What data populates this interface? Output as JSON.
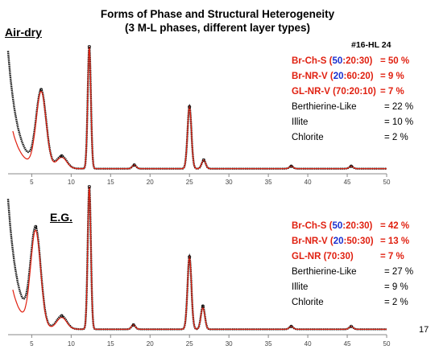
{
  "title_line1": "Forms of Phase and Structural Heterogeneity",
  "title_line2": "(3 M-L phases, different layer types)",
  "sample_id": "#16-HL 24",
  "page_number": "17",
  "colors": {
    "measured": "#111111",
    "calculated": "#e02010",
    "highlight": "#1a2fcf"
  },
  "chart_data": [
    {
      "type": "line",
      "panel_label": "Air-dry",
      "xlim": [
        2,
        50
      ],
      "x_ticks": [
        5,
        10,
        15,
        20,
        25,
        30,
        35,
        40,
        45,
        50
      ],
      "series": [],
      "peaks": [
        {
          "x": 6.2,
          "h_calc": 0.61,
          "h_meas": 0.61
        },
        {
          "x": 8.8,
          "h_calc": 0.09,
          "h_meas": 0.1
        },
        {
          "x": 12.3,
          "h_calc": 0.99,
          "h_meas": 1.0
        },
        {
          "x": 18.0,
          "h_calc": 0.03,
          "h_meas": 0.03
        },
        {
          "x": 25.0,
          "h_calc": 0.5,
          "h_meas": 0.5
        },
        {
          "x": 26.8,
          "h_calc": 0.07,
          "h_meas": 0.07
        },
        {
          "x": 37.9,
          "h_calc": 0.02,
          "h_meas": 0.02
        },
        {
          "x": 45.5,
          "h_calc": 0.02,
          "h_meas": 0.02
        }
      ],
      "components": [
        {
          "name_pre": "Br-Ch-S  (",
          "name_blue": "50",
          "name_post": ":20:30)",
          "value": "= 50 %",
          "emphasis": true
        },
        {
          "name_pre": "Br-NR-V  (",
          "name_blue": "20",
          "name_post": ":60:20)",
          "value": "=  9 %",
          "emphasis": true
        },
        {
          "name_pre": "GL-NR-V  (70:20:10)",
          "name_blue": "",
          "name_post": "",
          "value": "=  7 %",
          "emphasis": true
        },
        {
          "name_pre": "Berthierine-Like",
          "name_blue": "",
          "name_post": "",
          "value": "= 22 %",
          "emphasis": false
        },
        {
          "name_pre": "Illite",
          "name_blue": "",
          "name_post": "",
          "value": "= 10 %",
          "emphasis": false
        },
        {
          "name_pre": "Chlorite",
          "name_blue": "",
          "name_post": "",
          "value": "=  2 %",
          "emphasis": false
        }
      ]
    },
    {
      "type": "line",
      "panel_label": "E.G.",
      "xlim": [
        2,
        50
      ],
      "x_ticks": [
        5,
        10,
        15,
        20,
        25,
        30,
        35,
        40,
        45,
        50
      ],
      "series": [],
      "peaks": [
        {
          "x": 5.5,
          "h_calc": 0.66,
          "h_meas": 0.66
        },
        {
          "x": 8.8,
          "h_calc": 0.08,
          "h_meas": 0.09
        },
        {
          "x": 12.3,
          "h_calc": 0.99,
          "h_meas": 1.0
        },
        {
          "x": 17.9,
          "h_calc": 0.03,
          "h_meas": 0.03
        },
        {
          "x": 25.0,
          "h_calc": 0.5,
          "h_meas": 0.5
        },
        {
          "x": 26.7,
          "h_calc": 0.15,
          "h_meas": 0.16
        },
        {
          "x": 37.9,
          "h_calc": 0.02,
          "h_meas": 0.02
        },
        {
          "x": 45.5,
          "h_calc": 0.02,
          "h_meas": 0.02
        }
      ],
      "components": [
        {
          "name_pre": "Br-Ch-S  (",
          "name_blue": "50",
          "name_post": ":20:30)",
          "value": "= 42 %",
          "emphasis": true
        },
        {
          "name_pre": "Br-NR-V  (",
          "name_blue": "20",
          "name_post": ":50:30)",
          "value": "= 13 %",
          "emphasis": true
        },
        {
          "name_pre": "GL-NR    (70:30)",
          "name_blue": "",
          "name_post": "",
          "value": "=  7 %",
          "emphasis": true
        },
        {
          "name_pre": "Berthierine-Like",
          "name_blue": "",
          "name_post": "",
          "value": "= 27 %",
          "emphasis": false
        },
        {
          "name_pre": "Illite",
          "name_blue": "",
          "name_post": "",
          "value": "=  9 %",
          "emphasis": false
        },
        {
          "name_pre": "Chlorite",
          "name_blue": "",
          "name_post": "",
          "value": "=  2 %",
          "emphasis": false
        }
      ]
    }
  ]
}
